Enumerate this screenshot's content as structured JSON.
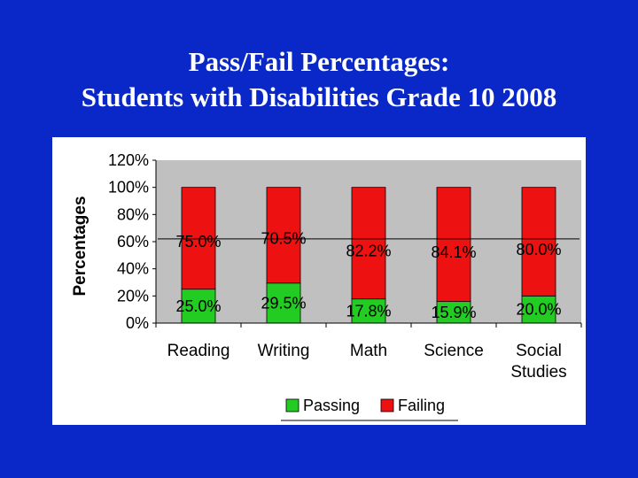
{
  "slide": {
    "title_line1": "Pass/Fail Percentages:",
    "title_line2": "Students with Disabilities Grade 10 2008",
    "background_color": "#0a28c8"
  },
  "chart_data": {
    "type": "bar",
    "stacked": true,
    "categories": [
      "Reading",
      "Writing",
      "Math",
      "Science",
      "Social Studies"
    ],
    "category_labels": [
      [
        "Reading"
      ],
      [
        "Writing"
      ],
      [
        "Math"
      ],
      [
        "Science"
      ],
      [
        "Social",
        "Studies"
      ]
    ],
    "series": [
      {
        "name": "Passing",
        "values": [
          25.0,
          29.5,
          17.8,
          15.9,
          20.0
        ],
        "labels": [
          "25.0%",
          "29.5%",
          "17.8%",
          "15.9%",
          "20.0%"
        ],
        "color": "#22cc22"
      },
      {
        "name": "Failing",
        "values": [
          75.0,
          70.5,
          82.2,
          84.1,
          80.0
        ],
        "labels": [
          "75.0%",
          "70.5%",
          "82.2%",
          "84.1%",
          "80.0%"
        ],
        "color": "#ee1111"
      }
    ],
    "ylabel": "Percentages",
    "xlabel": "",
    "ylim": [
      0,
      120
    ],
    "y_ticks": [
      0,
      20,
      40,
      60,
      80,
      100,
      120
    ],
    "y_tick_labels": [
      "0%",
      "20%",
      "40%",
      "60%",
      "80%",
      "100%",
      "120%"
    ],
    "grid": false,
    "plot_background": "#c0c0c0",
    "legend_position": "bottom"
  }
}
